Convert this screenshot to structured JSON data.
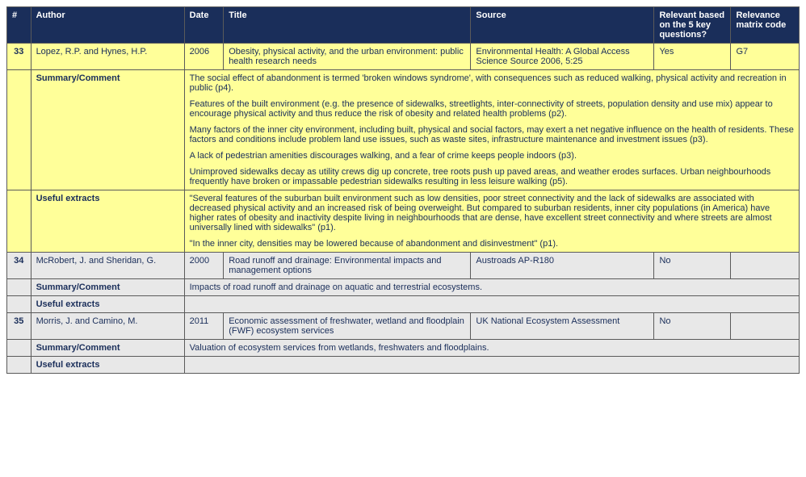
{
  "colors": {
    "header_bg": "#1a2e5a",
    "header_fg": "#ffffff",
    "highlight_bg": "#ffff99",
    "plain_bg": "#e8e8e8",
    "border": "#5a5a5a",
    "text": "#1a2e5a"
  },
  "columns": {
    "num": "#",
    "author": "Author",
    "date": "Date",
    "title": "Title",
    "source": "Source",
    "relevant": "Relevant based on the 5 key questions?",
    "code": "Relevance matrix code"
  },
  "labels": {
    "summary": "Summary/Comment",
    "extracts": "Useful extracts"
  },
  "rows": [
    {
      "num": "33",
      "highlight": true,
      "author": "Lopez, R.P. and Hynes, H.P.",
      "date": "2006",
      "title": "Obesity, physical activity, and the urban environment: public health research needs",
      "source": "Environmental Health: A Global Access Science Source 2006, 5:25",
      "relevant": "Yes",
      "code": "G7",
      "summary": [
        "The social effect of abandonment is termed 'broken windows syndrome', with consequences such as reduced walking, physical activity and recreation in public (p4).",
        "Features of the built environment (e.g. the presence of sidewalks, streetlights, inter-connectivity of streets, population density and use mix) appear to encourage physical activity and thus reduce the risk of obesity and related health problems (p2).",
        "Many factors of the inner city environment, including built, physical and social factors, may exert a net negative influence on the health of residents. These factors and conditions include problem land use issues, such as waste sites, infrastructure maintenance and investment issues (p3).",
        "A lack of pedestrian amenities discourages walking, and a fear of crime keeps people indoors (p3).",
        "Unimproved sidewalks decay as utility crews dig up concrete, tree roots push up paved areas, and weather erodes surfaces. Urban neighbourhoods frequently have broken or impassable pedestrian sidewalks resulting in less leisure walking (p5)."
      ],
      "extracts": [
        "\"Several features of the suburban built environment such as low densities, poor street connectivity and the lack of sidewalks are associated with decreased physical activity and an increased risk of being overweight. But compared to suburban residents, inner city populations (in America) have higher rates of obesity and inactivity despite living in neighbourhoods that are dense, have excellent street connectivity and where streets are almost universally lined with sidewalks\" (p1).",
        "\"In the inner city, densities may be lowered because of abandonment and disinvestment\" (p1)."
      ]
    },
    {
      "num": "34",
      "highlight": false,
      "author": "McRobert, J. and Sheridan, G.",
      "date": "2000",
      "title": "Road runoff and drainage: Environmental impacts and management options",
      "source": "Austroads AP-R180",
      "relevant": "No",
      "code": "",
      "summary": [
        "Impacts of road runoff and drainage on aquatic and terrestrial ecosystems."
      ],
      "extracts": []
    },
    {
      "num": "35",
      "highlight": false,
      "author": "Morris, J. and Camino, M.",
      "date": "2011",
      "title": "Economic assessment of freshwater, wetland and floodplain (FWF) ecosystem services",
      "source": "UK National Ecosystem Assessment",
      "relevant": "No",
      "code": "",
      "summary": [
        "Valuation of ecosystem services from wetlands, freshwaters and floodplains."
      ],
      "extracts": []
    }
  ]
}
